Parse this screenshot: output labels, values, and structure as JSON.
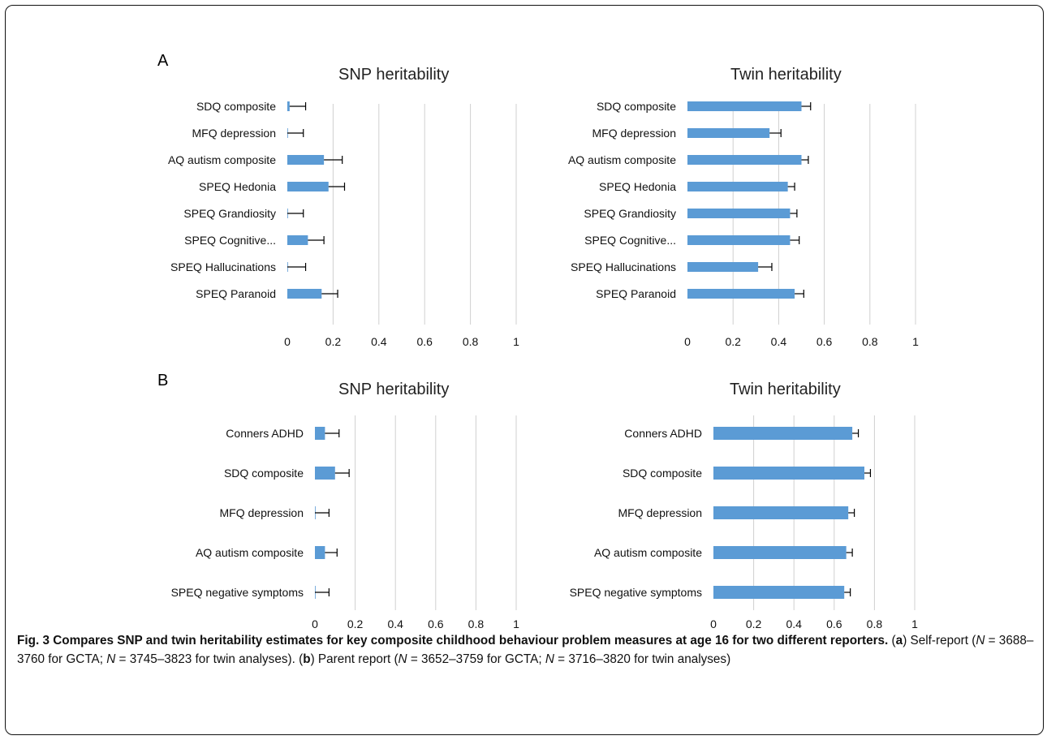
{
  "panels": {
    "a": "A",
    "b": "B"
  },
  "caption": {
    "title": "Fig. 3 Compares SNP and twin heritability estimates for key composite childhood behaviour problem measures at age 16 for two different reporters.",
    "part_a_letter": "a",
    "part_a_intro": "Self-report (",
    "part_a_gcta": "N = 3688–3760 for GCTA;",
    "part_a_twin": "N = 3745–3823 for twin analyses",
    "part_b_letter": "b",
    "part_b_intro": "Parent report (",
    "part_b_gcta": "N = 3652–3759 for GCTA;",
    "part_b_twin": "N = 3716–3820 for twin analyses"
  },
  "colors": {
    "bar": "#5b9bd5",
    "grid": "#d0d0d0"
  },
  "chart_data": [
    {
      "type": "bar",
      "orientation": "horizontal",
      "panel": "A",
      "title": "SNP heritability",
      "categories": [
        "SDQ composite",
        "MFQ depression",
        "AQ autism composite",
        "SPEQ Hedonia",
        "SPEQ Grandiosity",
        "SPEQ Cognitive...",
        "SPEQ Hallucinations",
        "SPEQ Paranoid"
      ],
      "values": [
        0.01,
        0.0,
        0.16,
        0.18,
        0.0,
        0.09,
        0.0,
        0.15
      ],
      "error_upper": [
        0.08,
        0.07,
        0.24,
        0.25,
        0.07,
        0.16,
        0.08,
        0.22
      ],
      "xlim": [
        0,
        1
      ],
      "xticks": [
        "0",
        "0.2",
        "0.4",
        "0.6",
        "0.8",
        "1"
      ],
      "grid": true
    },
    {
      "type": "bar",
      "orientation": "horizontal",
      "panel": "A",
      "title": "Twin heritability",
      "categories": [
        "SDQ composite",
        "MFQ depression",
        "AQ autism composite",
        "SPEQ Hedonia",
        "SPEQ Grandiosity",
        "SPEQ Cognitive...",
        "SPEQ Hallucinations",
        "SPEQ Paranoid"
      ],
      "values": [
        0.5,
        0.36,
        0.5,
        0.44,
        0.45,
        0.45,
        0.31,
        0.47
      ],
      "error_upper": [
        0.54,
        0.41,
        0.53,
        0.47,
        0.48,
        0.49,
        0.37,
        0.51
      ],
      "xlim": [
        0,
        1
      ],
      "xticks": [
        "0",
        "0.2",
        "0.4",
        "0.6",
        "0.8",
        "1"
      ],
      "grid": true
    },
    {
      "type": "bar",
      "orientation": "horizontal",
      "panel": "B",
      "title": "SNP heritability",
      "categories": [
        "Conners ADHD",
        "SDQ composite",
        "MFQ depression",
        "AQ autism composite",
        "SPEQ negative symptoms"
      ],
      "values": [
        0.05,
        0.1,
        0.0,
        0.05,
        0.0
      ],
      "error_upper": [
        0.12,
        0.17,
        0.07,
        0.11,
        0.07
      ],
      "xlim": [
        0,
        1
      ],
      "xticks": [
        "0",
        "0.2",
        "0.4",
        "0.6",
        "0.8",
        "1"
      ],
      "grid": true
    },
    {
      "type": "bar",
      "orientation": "horizontal",
      "panel": "B",
      "title": "Twin heritability",
      "categories": [
        "Conners ADHD",
        "SDQ composite",
        "MFQ depression",
        "AQ autism composite",
        "SPEQ negative symptoms"
      ],
      "values": [
        0.69,
        0.75,
        0.67,
        0.66,
        0.65
      ],
      "error_upper": [
        0.72,
        0.78,
        0.7,
        0.69,
        0.68
      ],
      "xlim": [
        0,
        1
      ],
      "xticks": [
        "0",
        "0.2",
        "0.4",
        "0.6",
        "0.8",
        "1"
      ],
      "grid": true
    }
  ]
}
